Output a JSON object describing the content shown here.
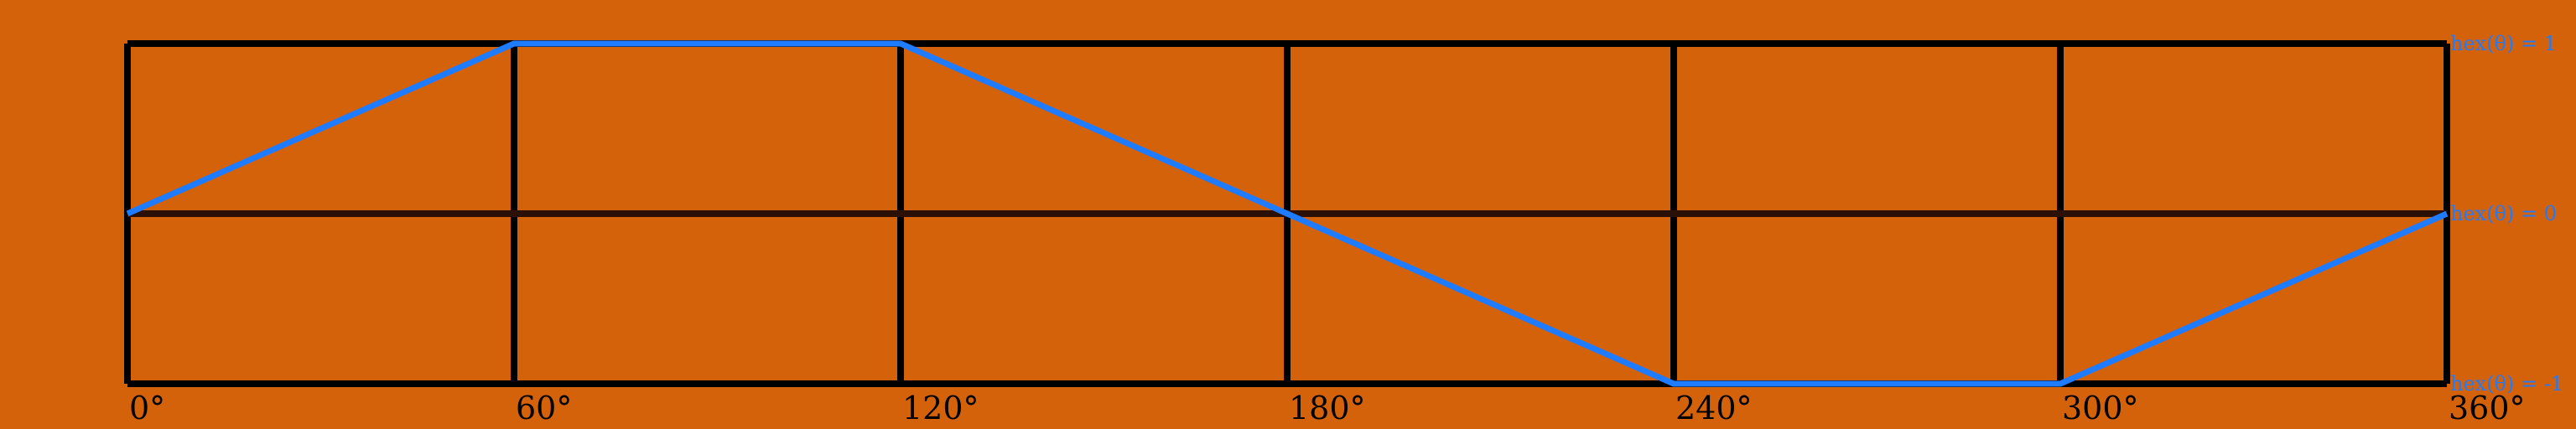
{
  "chart_data": {
    "type": "line",
    "title": "",
    "xlabel": "",
    "ylabel": "",
    "xlim": [
      0,
      360
    ],
    "ylim": [
      -1,
      1
    ],
    "grid": true,
    "x": [
      0,
      60,
      120,
      180,
      240,
      300,
      360
    ],
    "series": [
      {
        "values": [
          0,
          1,
          1,
          0,
          -1,
          -1,
          0
        ]
      }
    ],
    "x_tick_labels": [
      "0°",
      "60°",
      "120°",
      "180°",
      "240°",
      "300°",
      "360°"
    ],
    "y_reference_labels": [
      {
        "value": 1,
        "text": "hex(θ) = 1"
      },
      {
        "value": 0,
        "text": "hex(θ) = 0"
      },
      {
        "value": -1,
        "text": "hex(θ) = -1"
      }
    ],
    "colors": {
      "background": "#d4620b",
      "grid": "#000000",
      "line": "#1f7bff",
      "labels": "#1f7bff"
    }
  }
}
